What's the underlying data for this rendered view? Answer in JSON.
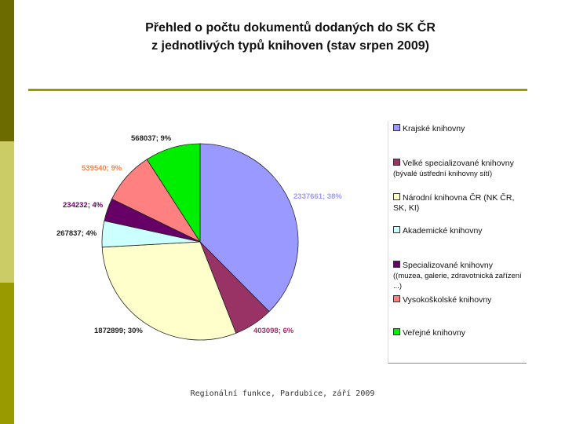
{
  "title_line1": "Přehled o počtu dokumentů dodaných  do SK ČR",
  "title_line2": "z jednotlivých typů knihoven (stav srpen 2009)",
  "footer": "Regionální funkce, Pardubice, září 2009",
  "chart_data": {
    "type": "pie",
    "title": "Přehled o počtu dokumentů dodaných do SK ČR z jednotlivých typů knihoven (stav srpen 2009)",
    "legend_position": "right",
    "slices": [
      {
        "name": "Krajské knihovny",
        "sub": "",
        "value": 2337661,
        "label": "2337661; 38%",
        "color": "#9999ff"
      },
      {
        "name": "Velké specializované knihovny",
        "sub": "(bývalé ústřední knihovny sítí)",
        "value": 403098,
        "label": "403098; 6%",
        "color": "#993366"
      },
      {
        "name": "Národní knihovna ČR (NK ČR, SK, KI)",
        "sub": "",
        "value": 1872899,
        "label": "1872899; 30%",
        "color": "#ffffcc"
      },
      {
        "name": "Akademické knihovny",
        "sub": "",
        "value": 267837,
        "label": "267837; 4%",
        "color": "#ccffff"
      },
      {
        "name": "Specializované knihovny",
        "sub": "((muzea, galerie, zdravotnická zařízení ...)",
        "value": 234232,
        "label": "234232; 4%",
        "color": "#660066"
      },
      {
        "name": "Vysokoškolské knihovny",
        "sub": "",
        "value": 539540,
        "label": "539540; 9%",
        "color": "#ff8080"
      },
      {
        "name": "Veřejné knihovny",
        "sub": "",
        "value": 568037,
        "label": "568037; 9%",
        "color": "#00ee00"
      }
    ],
    "label_colors": [
      "#9999ff",
      "#993366",
      "#222222",
      "#222222",
      "#660066",
      "#ff8040",
      "#222222"
    ]
  }
}
